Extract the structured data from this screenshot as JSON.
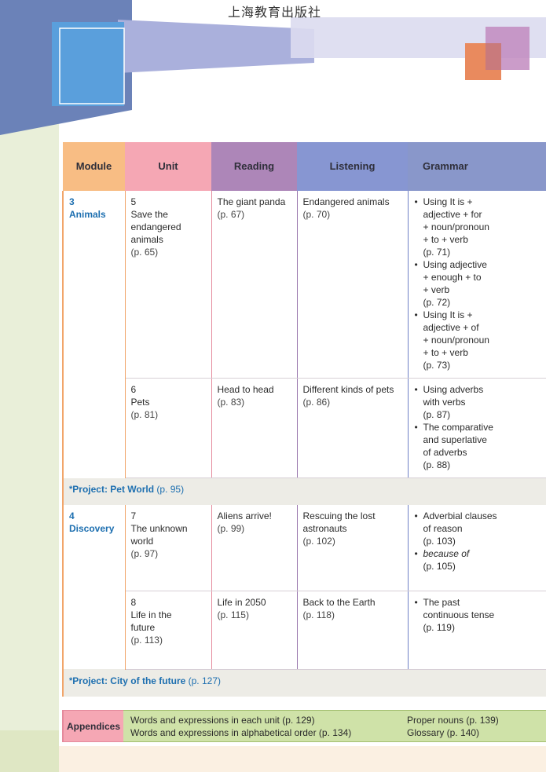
{
  "header": {
    "publisher": "上海教育出版社"
  },
  "columns": {
    "module": "Module",
    "unit": "Unit",
    "reading": "Reading",
    "listening": "Listening",
    "grammar": "Grammar"
  },
  "modules": [
    {
      "number": "3",
      "name": "Animals",
      "units": [
        {
          "number": "5",
          "title": [
            "Save the",
            "endangered",
            "animals"
          ],
          "page": "(p. 65)",
          "reading": {
            "title": "The giant panda",
            "page": "(p. 67)"
          },
          "listening": {
            "title": "Endangered animals",
            "page": "(p. 70)"
          },
          "grammar": [
            [
              "Using It is +",
              "adjective + for",
              "+ noun/pronoun",
              "+ to + verb",
              "(p. 71)"
            ],
            [
              "Using adjective",
              "+ enough + to",
              "+ verb",
              "(p. 72)"
            ],
            [
              "Using It is +",
              "adjective + of",
              "+ noun/pronoun",
              "+ to + verb",
              "(p. 73)"
            ]
          ]
        },
        {
          "number": "6",
          "title": [
            "Pets"
          ],
          "page": "(p. 81)",
          "reading": {
            "title": "Head to head",
            "page": "(p. 83)"
          },
          "listening": {
            "title": "Different kinds of pets",
            "page": "(p. 86)"
          },
          "grammar": [
            [
              "Using adverbs",
              "with verbs",
              "(p. 87)"
            ],
            [
              "The comparative",
              "and superlative",
              "of adverbs",
              "(p. 88)"
            ]
          ]
        }
      ],
      "project": {
        "star": "*",
        "label": "Project: Pet World",
        "page": "(p. 95)"
      }
    },
    {
      "number": "4",
      "name": "Discovery",
      "units": [
        {
          "number": "7",
          "title": [
            "The unknown",
            "world"
          ],
          "page": "(p. 97)",
          "reading": {
            "title": "Aliens arrive!",
            "page": "(p. 99)"
          },
          "listening": {
            "title": "Rescuing the lost astronauts",
            "page": "(p. 102)"
          },
          "grammar": [
            [
              "Adverbial clauses",
              "of reason",
              "(p. 103)"
            ],
            [
              "because of",
              "(p. 105)"
            ]
          ]
        },
        {
          "number": "8",
          "title": [
            "Life in the",
            "future"
          ],
          "page": "(p. 113)",
          "reading": {
            "title": "Life in 2050",
            "page": "(p. 115)"
          },
          "listening": {
            "title": "Back to the Earth",
            "page": "(p. 118)"
          },
          "grammar": [
            [
              "The past",
              "continuous tense",
              "(p. 119)"
            ]
          ]
        }
      ],
      "project": {
        "star": "*",
        "label": "Project: City of the future",
        "page": "(p. 127)"
      }
    }
  ],
  "appendices": {
    "label": "Appendices",
    "items": [
      "Words and expressions in each unit (p. 129)",
      "Words and expressions in alphabetical order (p. 134)",
      "Proper nouns (p. 139)",
      "Glossary (p. 140)"
    ]
  },
  "colors": {
    "module_header": "#f8bd84",
    "unit_header": "#f5a7b4",
    "reading_header": "#ad86b8",
    "listening_header": "#8796d2",
    "grammar_header": "#8997ca",
    "module_text": "#1d6fb0",
    "appendix_body": "#cfe2a8"
  }
}
